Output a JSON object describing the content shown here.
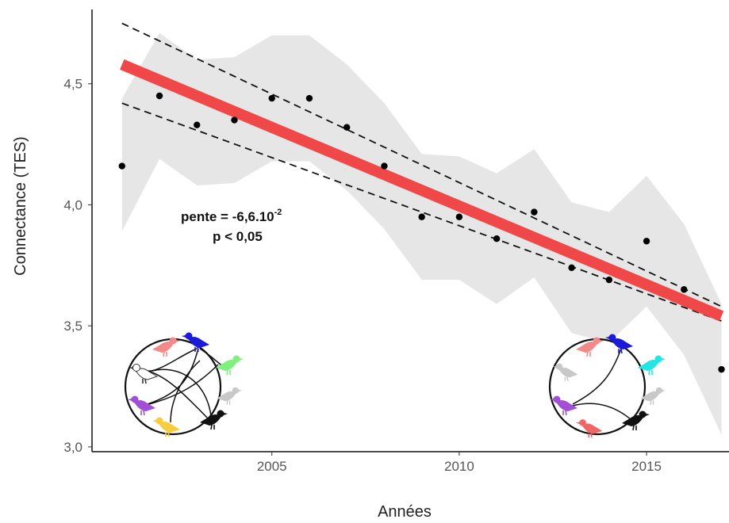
{
  "chart_data": {
    "type": "scatter",
    "xlabel": "Années",
    "ylabel": "Connectance (TES)",
    "xlim": [
      2000.2,
      2017.2
    ],
    "ylim": [
      2.98,
      4.82
    ],
    "x_ticks": [
      2005,
      2010,
      2015
    ],
    "y_ticks": [
      3.0,
      3.5,
      4.0,
      4.5
    ],
    "y_tick_labels": [
      "3,0",
      "3,5",
      "4,0",
      "4,5"
    ],
    "grid": false,
    "series": [
      {
        "x": [
          2001,
          2002,
          2003,
          2004,
          2005,
          2006,
          2007,
          2008,
          2009,
          2010,
          2011,
          2012,
          2013,
          2014,
          2015,
          2016,
          2017
        ],
        "y": [
          4.16,
          4.45,
          4.33,
          4.35,
          4.44,
          4.44,
          4.32,
          4.16,
          3.95,
          3.95,
          3.86,
          3.97,
          3.74,
          3.69,
          3.85,
          3.65,
          3.32
        ]
      }
    ],
    "trend_line": {
      "x": [
        2001,
        2017
      ],
      "y": [
        4.58,
        3.54
      ],
      "color": "#f04848"
    },
    "confidence_interval": {
      "x": [
        2001,
        2017
      ],
      "upper": [
        4.75,
        3.58
      ],
      "lower": [
        4.42,
        3.52
      ]
    },
    "variability_band": {
      "x": [
        2001,
        2002,
        2003,
        2004,
        2005,
        2006,
        2007,
        2008,
        2009,
        2010,
        2011,
        2012,
        2013,
        2014,
        2015,
        2016,
        2017
      ],
      "upper": [
        4.44,
        4.71,
        4.6,
        4.61,
        4.7,
        4.7,
        4.58,
        4.42,
        4.21,
        4.2,
        4.13,
        4.23,
        4.01,
        3.97,
        4.12,
        3.92,
        3.59
      ],
      "lower": [
        3.89,
        4.19,
        4.08,
        4.09,
        4.18,
        4.18,
        4.06,
        3.9,
        3.69,
        3.69,
        3.59,
        3.7,
        3.47,
        3.43,
        3.58,
        3.38,
        3.05
      ]
    },
    "annotation": {
      "line1": "pente = -6,6.10",
      "line1_superscript": "-2",
      "line2": "p < 0,05"
    }
  },
  "colors": {
    "band": "#e6e6e6",
    "trend": "#f04848",
    "points": "#000000",
    "bird_pink": "#f28a8a",
    "bird_blue": "#1a1ad8",
    "bird_green": "#7ef07e",
    "bird_cyan": "#22e6e6",
    "bird_grey": "#c8c8c8",
    "bird_purple": "#a24fd6",
    "bird_yellow": "#f5cd3f",
    "bird_red": "#f06565",
    "bird_black": "#111111",
    "bird_white": "#ffffff"
  },
  "insets": [
    {
      "birds": [
        "bird_pink",
        "bird_blue",
        "bird_white",
        "bird_green",
        "bird_grey",
        "bird_purple",
        "bird_black",
        "bird_yellow"
      ]
    },
    {
      "birds": [
        "bird_pink",
        "bird_blue",
        "bird_grey",
        "bird_cyan",
        "bird_grey",
        "bird_grey",
        "bird_purple",
        "bird_black",
        "bird_red"
      ]
    }
  ]
}
